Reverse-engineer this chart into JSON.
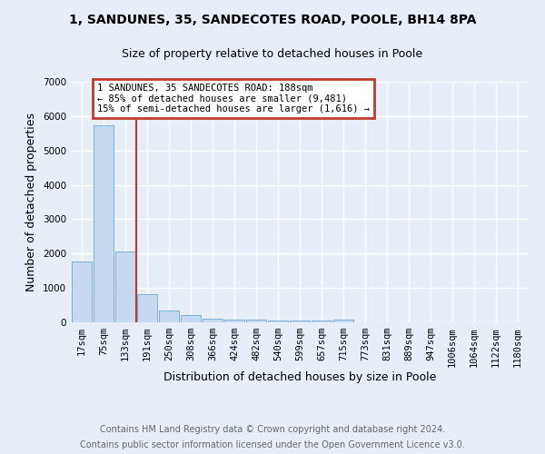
{
  "title": "1, SANDUNES, 35, SANDECOTES ROAD, POOLE, BH14 8PA",
  "subtitle": "Size of property relative to detached houses in Poole",
  "xlabel": "Distribution of detached houses by size in Poole",
  "ylabel": "Number of detached properties",
  "categories": [
    "17sqm",
    "75sqm",
    "133sqm",
    "191sqm",
    "250sqm",
    "308sqm",
    "366sqm",
    "424sqm",
    "482sqm",
    "540sqm",
    "599sqm",
    "657sqm",
    "715sqm",
    "773sqm",
    "831sqm",
    "889sqm",
    "947sqm",
    "1006sqm",
    "1064sqm",
    "1122sqm",
    "1180sqm"
  ],
  "values": [
    1780,
    5720,
    2050,
    830,
    340,
    200,
    115,
    90,
    90,
    60,
    55,
    50,
    90,
    0,
    0,
    0,
    0,
    0,
    0,
    0,
    0
  ],
  "bar_color": "#c5d9f0",
  "bar_edgecolor": "#7bafd4",
  "vline_color": "#c0392b",
  "vline_x_index": 3,
  "annotation_line1": "1 SANDUNES, 35 SANDECOTES ROAD: 188sqm",
  "annotation_line2": "← 85% of detached houses are smaller (9,481)",
  "annotation_line3": "15% of semi-detached houses are larger (1,616) →",
  "annotation_boxcolor": "white",
  "annotation_edgecolor": "#c0392b",
  "ylim": [
    0,
    7000
  ],
  "yticks": [
    0,
    1000,
    2000,
    3000,
    4000,
    5000,
    6000,
    7000
  ],
  "footnote1": "Contains HM Land Registry data © Crown copyright and database right 2024.",
  "footnote2": "Contains public sector information licensed under the Open Government Licence v3.0.",
  "bg_color": "#e8eef8",
  "plot_bg_color": "#e8eef8",
  "grid_color": "white",
  "title_fontsize": 10,
  "subtitle_fontsize": 9,
  "axis_label_fontsize": 9,
  "ylabel_fontsize": 9,
  "tick_fontsize": 7.5,
  "annotation_fontsize": 7.5,
  "footnote_fontsize": 7
}
